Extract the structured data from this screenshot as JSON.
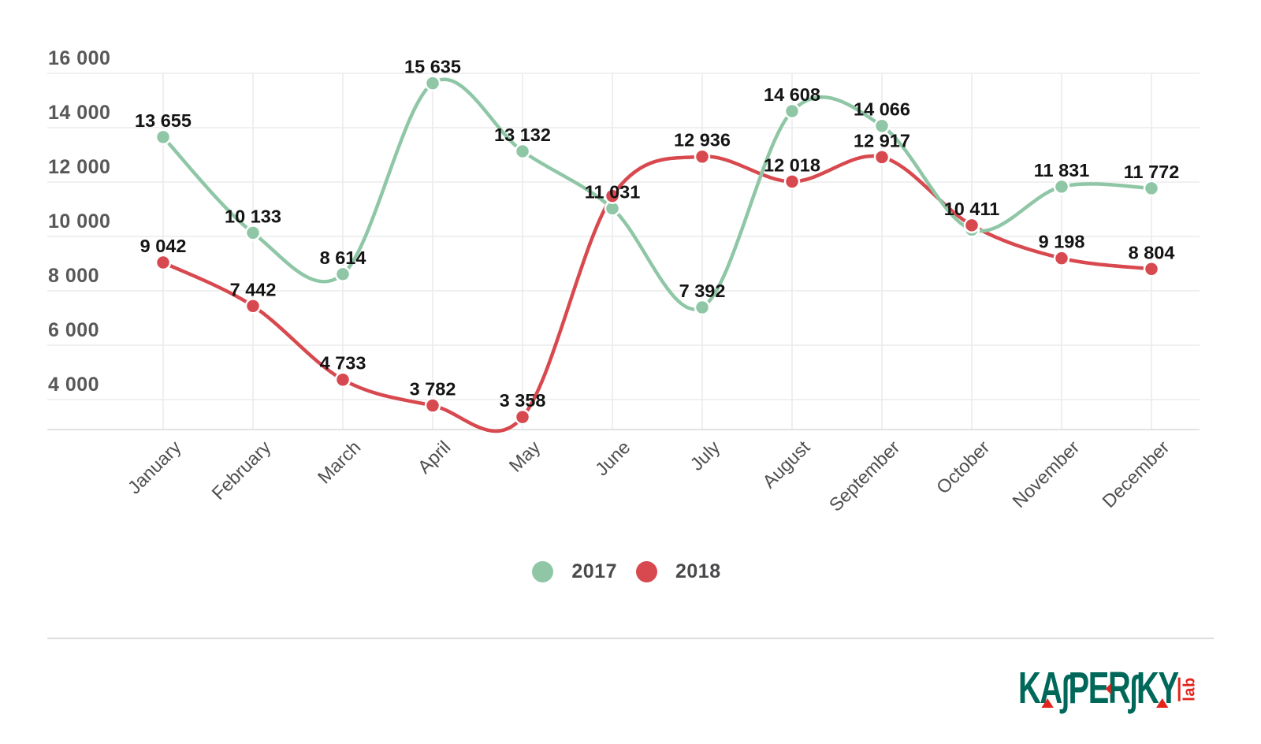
{
  "chart_data": {
    "type": "line",
    "title": "",
    "categories": [
      "January",
      "February",
      "March",
      "April",
      "May",
      "June",
      "July",
      "August",
      "September",
      "October",
      "November",
      "December"
    ],
    "x_tick_rotation_deg": -45,
    "yticks": [
      {
        "value": 16000,
        "label": "16 000"
      },
      {
        "value": 14000,
        "label": "14 000"
      },
      {
        "value": 12000,
        "label": "12 000"
      },
      {
        "value": 10000,
        "label": "10 000"
      },
      {
        "value": 8000,
        "label": "8 000"
      },
      {
        "value": 6000,
        "label": "6 000"
      },
      {
        "value": 4000,
        "label": "4 000"
      }
    ],
    "ylim": [
      2900,
      16000
    ],
    "grid": true,
    "smooth_lines": true,
    "marker": "circle",
    "legend_position": "bottom-center",
    "series": [
      {
        "name": "2017",
        "color": "#8fc7a6",
        "values": [
          13655,
          10133,
          8614,
          15635,
          13132,
          11031,
          7392,
          14608,
          14066,
          10250,
          11831,
          11772
        ],
        "point_labels": [
          "13 655",
          "10 133",
          "8 614",
          "15 635",
          "13 132",
          "11 031",
          "7 392",
          "14 608",
          "14 066",
          null,
          "11 831",
          "11 772"
        ],
        "unlabeled_estimated_indices": [
          9
        ]
      },
      {
        "name": "2018",
        "color": "#d8494f",
        "values": [
          9042,
          7442,
          4733,
          3782,
          3358,
          11490,
          12936,
          12018,
          12917,
          10411,
          9198,
          8804
        ],
        "point_labels": [
          "9 042",
          "7 442",
          "4 733",
          "3 782",
          "3 358",
          null,
          "12 936",
          "12 018",
          "12 917",
          "10 411",
          "9 198",
          "8 804"
        ],
        "unlabeled_estimated_indices": [
          5
        ]
      }
    ]
  },
  "legend": {
    "items": [
      {
        "label": "2017",
        "color": "#8fc7a6"
      },
      {
        "label": "2018",
        "color": "#d8494f"
      }
    ]
  },
  "footer": {
    "logo_word": "KASPERSKY",
    "logo_letters": [
      "K",
      "A",
      "∫",
      "P",
      "E",
      "R",
      "∫",
      "K",
      "Y"
    ],
    "lab_label": "lab",
    "logo_green": "#00685a",
    "logo_red": "#e3231c"
  },
  "colors": {
    "background": "#ffffff",
    "grid": "#ebebeb",
    "baseline": "#e2e2e2",
    "axis_label": "#58585a",
    "data_label": "#141414",
    "month_label": "#4e4e50",
    "divider": "#dcdcdc",
    "legend_text": "#4a4a4c"
  }
}
